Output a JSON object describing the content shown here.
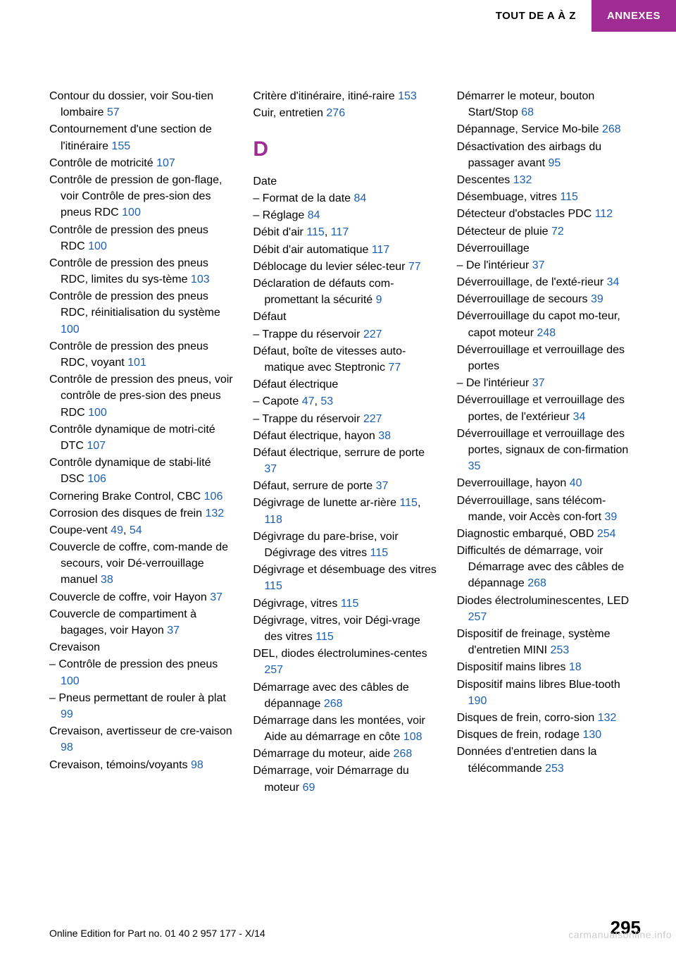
{
  "colors": {
    "accent": "#a02b93",
    "link": "#1a5fb4",
    "text": "#000000",
    "bg": "#ffffff",
    "watermark": "#cccccc"
  },
  "header": {
    "left": "TOUT DE A À Z",
    "right": "ANNEXES"
  },
  "col1": [
    {
      "t": "Contour du dossier, voir Sou‐tien lombaire ",
      "p": "57"
    },
    {
      "t": "Contournement d'une section de l'itinéraire ",
      "p": "155"
    },
    {
      "t": "Contrôle de motricité ",
      "p": "107"
    },
    {
      "t": "Contrôle de pression de gon‐flage, voir Contrôle de pres‐sion des pneus RDC ",
      "p": "100"
    },
    {
      "t": "Contrôle de pression des pneus RDC ",
      "p": "100"
    },
    {
      "t": "Contrôle de pression des pneus RDC, limites du sys‐tème ",
      "p": "103"
    },
    {
      "t": "Contrôle de pression des pneus RDC, réinitialisation du système ",
      "p": "100"
    },
    {
      "t": "Contrôle de pression des pneus RDC, voyant ",
      "p": "101"
    },
    {
      "t": "Contrôle de pression des pneus, voir contrôle de pres‐sion des pneus RDC ",
      "p": "100"
    },
    {
      "t": "Contrôle dynamique de motri‐cité DTC ",
      "p": "107"
    },
    {
      "t": "Contrôle dynamique de stabi‐lité DSC ",
      "p": "106"
    },
    {
      "t": "Cornering Brake Control, CBC ",
      "p": "106"
    },
    {
      "t": "Corrosion des disques de frein ",
      "p": "132"
    },
    {
      "t": "Coupe-vent ",
      "p": "49",
      "sep": ", ",
      "p2": "54"
    },
    {
      "t": "Couvercle de coffre, com‐mande de secours, voir Dé‐verrouillage manuel ",
      "p": "38"
    },
    {
      "t": "Couvercle de coffre, voir Hayon ",
      "p": "37"
    },
    {
      "t": "Couvercle de compartiment à bagages, voir Hayon ",
      "p": "37"
    },
    {
      "t": "Crevaison"
    },
    {
      "t": "– Contrôle de pression des pneus ",
      "p": "100"
    },
    {
      "t": "– Pneus permettant de rouler à plat ",
      "p": "99"
    },
    {
      "t": "Crevaison, avertisseur de cre‐vaison ",
      "p": "98"
    },
    {
      "t": "Crevaison, témoins/voyants ",
      "p": "98"
    }
  ],
  "col2_top": [
    {
      "t": "Critère d'itinéraire, itiné‐raire ",
      "p": "153"
    },
    {
      "t": "Cuir, entretien ",
      "p": "276"
    }
  ],
  "section_d": "D",
  "col2_d": [
    {
      "t": "Date"
    },
    {
      "t": "– Format de la date ",
      "p": "84"
    },
    {
      "t": "– Réglage ",
      "p": "84"
    },
    {
      "t": "Débit d'air ",
      "p": "115",
      "sep": ", ",
      "p2": "117"
    },
    {
      "t": "Débit d'air automatique ",
      "p": "117"
    },
    {
      "t": "Déblocage du levier sélec‐teur ",
      "p": "77"
    },
    {
      "t": "Déclaration de défauts com‐promettant la sécurité ",
      "p": "9"
    },
    {
      "t": "Défaut"
    },
    {
      "t": "– Trappe du réservoir ",
      "p": "227"
    },
    {
      "t": "Défaut, boîte de vitesses auto‐matique avec Steptronic ",
      "p": "77"
    },
    {
      "t": "Défaut électrique"
    },
    {
      "t": "– Capote ",
      "p": "47",
      "sep": ", ",
      "p2": "53"
    },
    {
      "t": "– Trappe du réservoir ",
      "p": "227"
    },
    {
      "t": "Défaut électrique, hayon ",
      "p": "38"
    },
    {
      "t": "Défaut électrique, serrure de porte ",
      "p": "37"
    },
    {
      "t": "Défaut, serrure de porte ",
      "p": "37"
    },
    {
      "t": "Dégivrage de lunette ar‐rière ",
      "p": "115",
      "sep": ", ",
      "p2": "118"
    },
    {
      "t": "Dégivrage du pare-brise, voir Dégivrage des vitres ",
      "p": "115"
    },
    {
      "t": "Dégivrage et désembuage des vitres ",
      "p": "115"
    },
    {
      "t": "Dégivrage, vitres ",
      "p": "115"
    },
    {
      "t": "Dégivrage, vitres, voir Dégi‐vrage des vitres ",
      "p": "115"
    },
    {
      "t": "DEL, diodes électrolumines‐centes ",
      "p": "257"
    },
    {
      "t": "Démarrage avec des câbles de dépannage ",
      "p": "268"
    },
    {
      "t": "Démarrage dans les montées, voir Aide au démarrage en côte ",
      "p": "108"
    },
    {
      "t": "Démarrage du moteur, aide ",
      "p": "268"
    },
    {
      "t": "Démarrage, voir Démarrage du moteur ",
      "p": "69"
    }
  ],
  "col3": [
    {
      "t": "Démarrer le moteur, bouton Start/Stop ",
      "p": "68"
    },
    {
      "t": "Dépannage, Service Mo‐bile ",
      "p": "268"
    },
    {
      "t": "Désactivation des airbags du passager avant ",
      "p": "95"
    },
    {
      "t": "Descentes ",
      "p": "132"
    },
    {
      "t": "Désembuage, vitres ",
      "p": "115"
    },
    {
      "t": "Détecteur d'obstacles PDC ",
      "p": "112"
    },
    {
      "t": "Détecteur de pluie ",
      "p": "72"
    },
    {
      "t": "Déverrouillage"
    },
    {
      "t": "– De l'intérieur ",
      "p": "37"
    },
    {
      "t": "Déverrouillage, de l'exté‐rieur ",
      "p": "34"
    },
    {
      "t": "Déverrouillage de secours ",
      "p": "39"
    },
    {
      "t": "Déverrouillage du capot mo‐teur, capot moteur ",
      "p": "248"
    },
    {
      "t": "Déverrouillage et verrouillage des portes"
    },
    {
      "t": "– De l'intérieur ",
      "p": "37"
    },
    {
      "t": "Déverrouillage et verrouillage des portes, de l'extérieur ",
      "p": "34"
    },
    {
      "t": "Déverrouillage et verrouillage des portes, signaux de con‐firmation ",
      "p": "35"
    },
    {
      "t": "Deverrouillage, hayon ",
      "p": "40"
    },
    {
      "t": "Déverrouillage, sans télécom‐mande, voir Accès con‐fort ",
      "p": "39"
    },
    {
      "t": "Diagnostic embarqué, OBD ",
      "p": "254"
    },
    {
      "t": "Difficultés de démarrage, voir Démarrage avec des câbles de dépannage ",
      "p": "268"
    },
    {
      "t": "Diodes électroluminescentes, LED ",
      "p": "257"
    },
    {
      "t": "Dispositif de freinage, système d'entretien MINI ",
      "p": "253"
    },
    {
      "t": "Dispositif mains libres ",
      "p": "18"
    },
    {
      "t": "Dispositif mains libres Blue‐tooth ",
      "p": "190"
    },
    {
      "t": "Disques de frein, corro‐sion ",
      "p": "132"
    },
    {
      "t": "Disques de frein, rodage ",
      "p": "130"
    },
    {
      "t": "Données d'entretien dans la télécommande ",
      "p": "253"
    }
  ],
  "footer": {
    "left": "Online Edition for Part no. 01 40 2 957 177 - X/14",
    "page": "295",
    "watermark": "carmanualsonline.info"
  }
}
